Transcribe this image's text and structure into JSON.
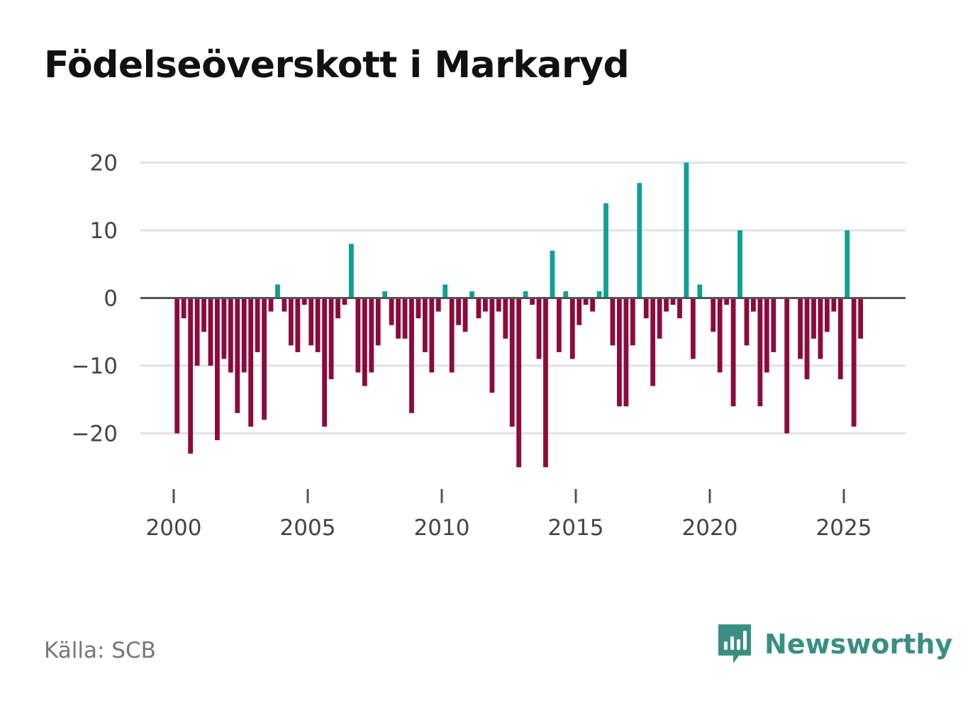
{
  "title": "Födelseöverskott i Markaryd",
  "source": "Källa: SCB",
  "brand": {
    "name": "Newsworthy",
    "icon": "newsworthy-logo-icon"
  },
  "colors": {
    "positive": "#0ea096",
    "negative": "#8c0a3c",
    "grid": "#e2e2e2",
    "zero_line": "#555555",
    "text": "#444444",
    "brand": "#3a8f84"
  },
  "chart_data": {
    "type": "bar",
    "title": "Födelseöverskott i Markaryd",
    "xlabel": "",
    "ylabel": "",
    "ylim": [
      -26,
      20
    ],
    "yticks": [
      20,
      10,
      0,
      -10,
      -20
    ],
    "ytick_labels": [
      "20",
      "10",
      "0",
      "−10",
      "−20"
    ],
    "xticks": [
      2000,
      2005,
      2010,
      2015,
      2020,
      2025
    ],
    "xtick_labels": [
      "2000",
      "2005",
      "2010",
      "2015",
      "2020",
      "2025"
    ],
    "grid": true,
    "interval": "quarterly",
    "start_year": 2000,
    "values": [
      -20,
      -3,
      -23,
      -10,
      -5,
      -10,
      -21,
      -9,
      -11,
      -17,
      -11,
      -19,
      -8,
      -18,
      -2,
      2,
      -2,
      -7,
      -8,
      -1,
      -7,
      -8,
      -19,
      -12,
      -3,
      -1,
      8,
      -11,
      -13,
      -11,
      -7,
      1,
      -4,
      -6,
      -6,
      -17,
      -3,
      -8,
      -11,
      -2,
      2,
      -11,
      -4,
      -5,
      1,
      -3,
      -2,
      -14,
      -2,
      -6,
      -19,
      -25,
      1,
      -1,
      -9,
      -25,
      7,
      -8,
      1,
      -9,
      -4,
      -1,
      -2,
      1,
      14,
      -7,
      -16,
      -16,
      -7,
      17,
      -3,
      -13,
      -6,
      -2,
      -1,
      -3,
      20,
      -9,
      2,
      0,
      -5,
      -11,
      -1,
      -16,
      10,
      -7,
      -2,
      -16,
      -11,
      -8,
      0,
      -20,
      0,
      -9,
      -12,
      -6,
      -9,
      -5,
      -2,
      -12,
      10,
      -19,
      -6
    ]
  }
}
